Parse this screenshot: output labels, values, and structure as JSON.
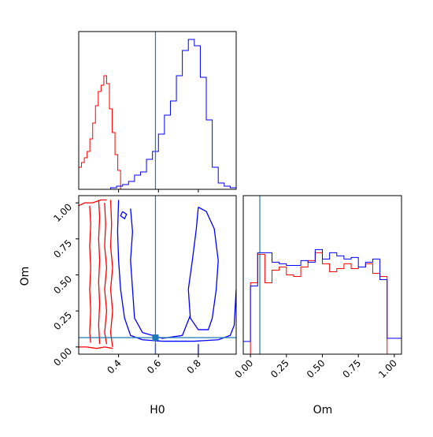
{
  "chart_data": {
    "type": "corner",
    "parameters": [
      "H0",
      "Om"
    ],
    "truth": {
      "H0": 0.585,
      "Om": 0.065,
      "color": "#1f77b4"
    },
    "series_colors": {
      "red": "#ff0000",
      "blue": "#0000ff"
    },
    "panels": [
      {
        "id": "hist_H0",
        "type": "histogram",
        "xlim": [
          0.2,
          0.99
        ],
        "x_ticks": [
          0.4,
          0.6,
          0.8
        ],
        "x_ticklabels_shown": false,
        "series": [
          {
            "color": "red",
            "x": [
              0.2,
              0.214,
              0.228,
              0.242,
              0.256,
              0.27,
              0.284,
              0.298,
              0.312,
              0.326,
              0.34,
              0.354,
              0.368,
              0.382,
              0.396,
              0.41
            ],
            "counts": [
              0.14,
              0.17,
              0.2,
              0.24,
              0.32,
              0.42,
              0.53,
              0.62,
              0.66,
              0.72,
              0.67,
              0.51,
              0.36,
              0.22,
              0.12,
              0
            ]
          },
          {
            "color": "blue",
            "x": [
              0.36,
              0.39,
              0.42,
              0.45,
              0.48,
              0.51,
              0.54,
              0.57,
              0.6,
              0.63,
              0.66,
              0.69,
              0.72,
              0.75,
              0.78,
              0.81,
              0.84,
              0.87,
              0.9,
              0.93,
              0.96,
              0.99
            ],
            "counts": [
              0.01,
              0.02,
              0.03,
              0.05,
              0.09,
              0.11,
              0.19,
              0.24,
              0.35,
              0.47,
              0.56,
              0.72,
              0.88,
              0.95,
              0.91,
              0.71,
              0.44,
              0.14,
              0.04,
              0.02,
              0.01
            ]
          }
        ]
      },
      {
        "id": "contour_H0_Om",
        "type": "contour",
        "xlim": [
          0.2,
          0.99
        ],
        "ylim": [
          -0.05,
          1.05
        ],
        "x_ticks": [
          0.4,
          0.6,
          0.8
        ],
        "x_ticklabels": [
          "0.4",
          "0.6",
          "0.8"
        ],
        "y_ticks": [
          0,
          0.25,
          0.5,
          0.75,
          1.0
        ],
        "y_ticklabels": [
          "0.00",
          "0.25",
          "0.50",
          "0.75",
          "1.00"
        ],
        "xlabel": "H0",
        "ylabel": "Om",
        "contours": [
          {
            "color": "red",
            "points": [
              [
                0.255,
                0.98
              ],
              [
                0.26,
                0.85
              ],
              [
                0.255,
                0.7
              ],
              [
                0.26,
                0.55
              ],
              [
                0.255,
                0.4
              ],
              [
                0.26,
                0.25
              ],
              [
                0.255,
                0.1
              ],
              [
                0.26,
                0.03
              ]
            ]
          },
          {
            "color": "red",
            "points": [
              [
                0.3,
                1.02
              ],
              [
                0.305,
                0.9
              ],
              [
                0.3,
                0.75
              ],
              [
                0.305,
                0.6
              ],
              [
                0.3,
                0.45
              ],
              [
                0.305,
                0.3
              ],
              [
                0.3,
                0.15
              ],
              [
                0.305,
                0.02
              ]
            ]
          },
          {
            "color": "red",
            "points": [
              [
                0.33,
                1.0
              ],
              [
                0.335,
                0.85
              ],
              [
                0.33,
                0.7
              ],
              [
                0.34,
                0.55
              ],
              [
                0.33,
                0.4
              ],
              [
                0.34,
                0.25
              ],
              [
                0.33,
                0.1
              ],
              [
                0.34,
                0.02
              ]
            ]
          },
          {
            "color": "red",
            "points": [
              [
                0.36,
                1.02
              ],
              [
                0.365,
                0.85
              ],
              [
                0.36,
                0.7
              ],
              [
                0.37,
                0.55
              ],
              [
                0.36,
                0.4
              ],
              [
                0.37,
                0.25
              ],
              [
                0.36,
                0.1
              ],
              [
                0.37,
                0.0
              ]
            ]
          },
          {
            "color": "red",
            "points": [
              [
                0.2,
                0.98
              ],
              [
                0.23,
                1.0
              ],
              [
                0.27,
                1.0
              ],
              [
                0.31,
                1.02
              ],
              [
                0.34,
                1.02
              ]
            ]
          },
          {
            "color": "red",
            "points": [
              [
                0.2,
                0.0
              ],
              [
                0.24,
                0.0
              ],
              [
                0.29,
                -0.01
              ],
              [
                0.33,
                0.0
              ],
              [
                0.37,
                -0.01
              ]
            ]
          },
          {
            "color": "blue",
            "points": [
              [
                0.4,
                1.02
              ],
              [
                0.395,
                0.8
              ],
              [
                0.4,
                0.6
              ],
              [
                0.41,
                0.4
              ],
              [
                0.43,
                0.2
              ],
              [
                0.46,
                0.08
              ],
              [
                0.52,
                0.05
              ],
              [
                0.62,
                0.04
              ],
              [
                0.78,
                0.04
              ],
              [
                0.9,
                0.05
              ],
              [
                0.96,
                0.08
              ],
              [
                0.98,
                0.15
              ],
              [
                0.99,
                0.4
              ]
            ]
          },
          {
            "color": "blue",
            "points": [
              [
                0.46,
                0.96
              ],
              [
                0.47,
                0.8
              ],
              [
                0.46,
                0.6
              ],
              [
                0.47,
                0.4
              ],
              [
                0.48,
                0.2
              ],
              [
                0.52,
                0.1
              ],
              [
                0.62,
                0.06
              ],
              [
                0.72,
                0.08
              ],
              [
                0.76,
                0.22
              ]
            ]
          },
          {
            "color": "blue",
            "points": [
              [
                0.8,
                0.97
              ],
              [
                0.84,
                0.94
              ],
              [
                0.88,
                0.82
              ],
              [
                0.9,
                0.6
              ],
              [
                0.89,
                0.4
              ],
              [
                0.87,
                0.2
              ],
              [
                0.85,
                0.12
              ],
              [
                0.8,
                0.12
              ],
              [
                0.76,
                0.2
              ],
              [
                0.75,
                0.4
              ],
              [
                0.77,
                0.6
              ],
              [
                0.79,
                0.82
              ],
              [
                0.8,
                0.97
              ]
            ]
          },
          {
            "color": "blue",
            "points": [
              [
                0.42,
                0.94
              ],
              [
                0.44,
                0.92
              ],
              [
                0.43,
                0.89
              ],
              [
                0.41,
                0.91
              ],
              [
                0.42,
                0.94
              ]
            ]
          },
          {
            "color": "blue",
            "points": [
              [
                0.585,
                0.02
              ],
              [
                0.585,
                -0.05
              ]
            ]
          },
          {
            "color": "blue",
            "points": [
              [
                0.8,
                0.02
              ],
              [
                0.8,
                -0.05
              ]
            ]
          }
        ]
      },
      {
        "id": "hist_Om",
        "type": "histogram",
        "xlim": [
          -0.05,
          1.05
        ],
        "x_ticks": [
          0,
          0.25,
          0.5,
          0.75,
          1.0
        ],
        "x_ticklabels": [
          "0.00",
          "0.25",
          "0.50",
          "0.75",
          "1.00"
        ],
        "xlabel": "Om",
        "series": [
          {
            "color": "red",
            "x": [
              -0.05,
              0.0,
              0.05,
              0.1,
              0.15,
              0.2,
              0.25,
              0.3,
              0.35,
              0.4,
              0.45,
              0.5,
              0.55,
              0.6,
              0.65,
              0.7,
              0.75,
              0.8,
              0.85,
              0.9,
              0.95,
              1.0,
              1.05
            ],
            "counts": [
              0,
              0.45,
              0.63,
              0.45,
              0.53,
              0.55,
              0.5,
              0.49,
              0.55,
              0.59,
              0.64,
              0.57,
              0.52,
              0.54,
              0.57,
              0.54,
              0.55,
              0.57,
              0.51,
              0.49,
              0,
              0
            ]
          },
          {
            "color": "blue",
            "x": [
              -0.05,
              0.0,
              0.05,
              0.1,
              0.15,
              0.2,
              0.25,
              0.3,
              0.35,
              0.4,
              0.45,
              0.5,
              0.55,
              0.6,
              0.65,
              0.7,
              0.75,
              0.8,
              0.85,
              0.9,
              0.95,
              1.0,
              1.05
            ],
            "counts": [
              0.08,
              0.43,
              0.64,
              0.64,
              0.58,
              0.57,
              0.56,
              0.56,
              0.59,
              0.58,
              0.66,
              0.6,
              0.64,
              0.62,
              0.6,
              0.61,
              0.55,
              0.58,
              0.6,
              0.47,
              0.1,
              0.1
            ]
          }
        ]
      }
    ]
  }
}
